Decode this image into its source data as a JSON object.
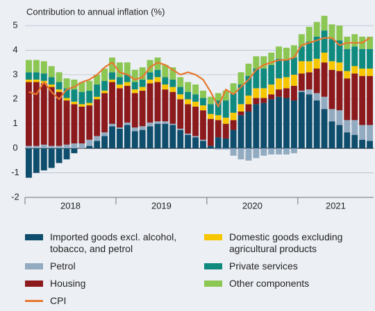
{
  "chart_data": {
    "type": "stacked-bar-line",
    "title": "Contribution to annual inflation (%)",
    "categories": [
      null,
      null,
      null,
      null,
      null,
      null,
      null,
      null,
      null,
      null,
      null,
      null,
      null,
      null,
      null,
      null,
      null,
      null,
      null,
      null,
      null,
      null,
      null,
      null,
      null,
      null,
      null,
      null,
      null,
      null,
      null,
      null,
      null,
      null,
      null,
      null,
      null,
      null,
      null,
      null,
      null,
      null,
      null,
      null,
      null,
      null
    ],
    "category_groups": [
      "2018",
      "2019",
      "2020",
      "2021"
    ],
    "ylim": [
      -2,
      5
    ],
    "yticks": [
      -2,
      -1,
      0,
      1,
      2,
      3,
      4,
      5
    ],
    "grid": true,
    "series": [
      {
        "name": "Imported goods excl. alcohol, tobacco, and petrol",
        "color": "#0e4d6c",
        "values": [
          -1.2,
          -1.0,
          -0.9,
          -0.8,
          -0.6,
          -0.45,
          -0.2,
          0.0,
          0.1,
          0.3,
          0.5,
          0.9,
          0.8,
          0.95,
          0.7,
          0.75,
          0.9,
          1.0,
          1.0,
          0.95,
          0.75,
          0.55,
          0.45,
          0.3,
          0.1,
          0.45,
          0.4,
          0.75,
          1.35,
          1.5,
          1.8,
          1.85,
          2.0,
          2.1,
          2.05,
          1.95,
          2.3,
          2.2,
          1.95,
          1.6,
          1.1,
          0.95,
          0.65,
          0.55,
          0.35,
          0.3
        ]
      },
      {
        "name": "Petrol",
        "color": "#93abc0",
        "values": [
          0.1,
          0.1,
          0.15,
          0.1,
          0.1,
          0.15,
          0.2,
          0.2,
          0.25,
          0.2,
          0.15,
          0.1,
          0.05,
          0.1,
          0.15,
          0.15,
          0.15,
          0.1,
          0.1,
          0.05,
          0.05,
          0.05,
          0.05,
          0.05,
          0.0,
          -0.05,
          -0.05,
          -0.3,
          -0.45,
          -0.5,
          -0.4,
          -0.3,
          -0.25,
          -0.25,
          -0.25,
          -0.2,
          0.05,
          0.2,
          0.3,
          0.5,
          0.5,
          0.6,
          0.5,
          0.6,
          0.6,
          0.65
        ]
      },
      {
        "name": "Housing",
        "color": "#8c1a1c",
        "values": [
          2.6,
          2.6,
          2.5,
          2.4,
          2.2,
          1.8,
          1.6,
          1.5,
          1.4,
          1.5,
          1.6,
          1.7,
          1.6,
          1.5,
          1.4,
          1.45,
          1.6,
          1.6,
          1.3,
          1.3,
          1.2,
          1.2,
          1.2,
          1.2,
          1.1,
          0.7,
          0.6,
          0.4,
          0.15,
          0.3,
          0.25,
          0.2,
          0.2,
          0.3,
          0.4,
          0.6,
          0.7,
          0.7,
          1.0,
          1.4,
          1.6,
          1.6,
          1.7,
          1.9,
          2.0,
          2.0
        ]
      },
      {
        "name": "Domestic goods excluding agricultural products",
        "color": "#f6c700",
        "values": [
          0.1,
          0.1,
          0.1,
          0.1,
          0.1,
          0.1,
          0.1,
          0.1,
          0.1,
          0.1,
          0.1,
          0.1,
          0.15,
          0.15,
          0.15,
          0.15,
          0.15,
          0.2,
          0.2,
          0.2,
          0.2,
          0.2,
          0.2,
          0.2,
          0.2,
          0.2,
          0.25,
          0.3,
          0.3,
          0.35,
          0.4,
          0.4,
          0.4,
          0.45,
          0.45,
          0.45,
          0.5,
          0.45,
          0.4,
          0.4,
          0.35,
          0.35,
          0.3,
          0.3,
          0.3,
          0.3
        ]
      },
      {
        "name": "Private services",
        "color": "#0f8a7f",
        "values": [
          0.3,
          0.3,
          0.3,
          0.3,
          0.3,
          0.4,
          0.5,
          0.5,
          0.5,
          0.5,
          0.4,
          0.3,
          0.3,
          0.3,
          0.3,
          0.3,
          0.3,
          0.3,
          0.3,
          0.3,
          0.3,
          0.3,
          0.3,
          0.3,
          0.4,
          0.6,
          0.7,
          0.8,
          0.8,
          0.8,
          0.8,
          0.8,
          0.8,
          0.8,
          0.7,
          0.7,
          0.6,
          0.8,
          0.9,
          0.9,
          0.9,
          0.9,
          0.9,
          0.8,
          0.8,
          0.8
        ]
      },
      {
        "name": "Other components",
        "color": "#8cc653",
        "values": [
          0.5,
          0.5,
          0.5,
          0.45,
          0.4,
          0.4,
          0.4,
          0.4,
          0.4,
          0.4,
          0.5,
          0.6,
          0.6,
          0.5,
          0.5,
          0.5,
          0.5,
          0.5,
          0.5,
          0.5,
          0.4,
          0.4,
          0.4,
          0.3,
          0.3,
          0.3,
          0.4,
          0.4,
          0.5,
          0.5,
          0.5,
          0.5,
          0.5,
          0.5,
          0.5,
          0.5,
          0.5,
          0.6,
          0.6,
          0.6,
          0.6,
          0.6,
          0.5,
          0.5,
          0.5,
          0.5
        ]
      },
      {
        "name": "CPI",
        "color": "#e8772e",
        "kind": "line",
        "values": [
          2.3,
          2.2,
          2.7,
          2.3,
          2.0,
          2.4,
          2.5,
          2.7,
          2.8,
          3.0,
          3.3,
          3.5,
          3.1,
          3.0,
          2.8,
          2.9,
          3.3,
          3.5,
          3.4,
          3.2,
          3.0,
          3.1,
          3.0,
          2.8,
          2.3,
          1.7,
          2.4,
          2.2,
          2.5,
          2.8,
          3.2,
          3.4,
          3.5,
          3.6,
          3.6,
          3.7,
          4.2,
          4.3,
          4.4,
          4.5,
          4.5,
          4.2,
          4.3,
          4.3,
          4.3,
          4.5
        ]
      }
    ]
  }
}
